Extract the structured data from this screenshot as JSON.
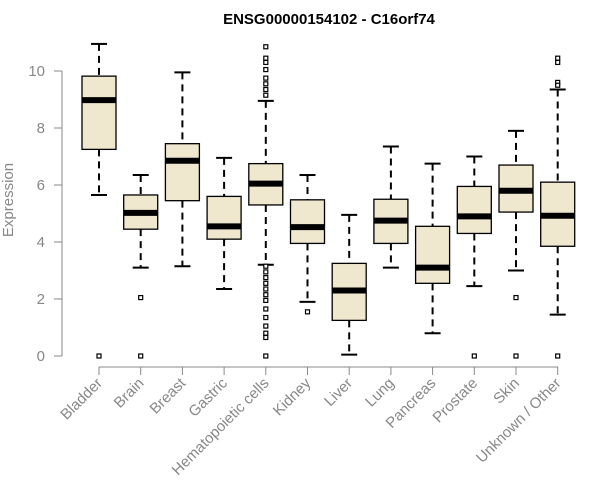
{
  "chart_data": {
    "type": "boxplot",
    "title": "ENSG00000154102 - C16orf74",
    "xlabel": "",
    "ylabel": "Expression",
    "ylim": [
      0,
      11
    ],
    "yticks": [
      0,
      2,
      4,
      6,
      8,
      10
    ],
    "grid": false,
    "box_fill": "#efe8cf",
    "categories": [
      "Bladder",
      "Brain",
      "Breast",
      "Gastric",
      "Hematopoietic cells",
      "Kidney",
      "Liver",
      "Lung",
      "Pancreas",
      "Prostate",
      "Skin",
      "Unknown / Other"
    ],
    "boxes": [
      {
        "whisker_low": 5.65,
        "q1": 7.25,
        "median": 8.98,
        "q3": 9.82,
        "whisker_high": 10.95,
        "outliers": [
          0
        ]
      },
      {
        "whisker_low": 3.1,
        "q1": 4.45,
        "median": 5.02,
        "q3": 5.65,
        "whisker_high": 6.35,
        "outliers": [
          2.05,
          0
        ]
      },
      {
        "whisker_low": 3.15,
        "q1": 5.45,
        "median": 6.85,
        "q3": 7.45,
        "whisker_high": 9.95,
        "outliers": []
      },
      {
        "whisker_low": 2.35,
        "q1": 4.1,
        "median": 4.55,
        "q3": 5.6,
        "whisker_high": 6.95,
        "outliers": []
      },
      {
        "whisker_low": 3.2,
        "q1": 5.3,
        "median": 6.05,
        "q3": 6.75,
        "whisker_high": 8.95,
        "outliers": [
          10.85,
          10.45,
          10.3,
          10.05,
          9.75,
          9.55,
          9.35,
          9.15,
          3.15,
          2.95,
          2.75,
          2.55,
          2.35,
          2.15,
          1.95,
          1.65,
          1.35,
          1.05,
          0.8,
          0.65,
          0
        ]
      },
      {
        "whisker_low": 1.9,
        "q1": 3.95,
        "median": 4.52,
        "q3": 5.48,
        "whisker_high": 6.35,
        "outliers": [
          1.55
        ]
      },
      {
        "whisker_low": 0.05,
        "q1": 1.25,
        "median": 2.3,
        "q3": 3.25,
        "whisker_high": 4.95,
        "outliers": []
      },
      {
        "whisker_low": 3.1,
        "q1": 3.95,
        "median": 4.75,
        "q3": 5.5,
        "whisker_high": 7.35,
        "outliers": []
      },
      {
        "whisker_low": 0.8,
        "q1": 2.55,
        "median": 3.1,
        "q3": 4.55,
        "whisker_high": 6.75,
        "outliers": []
      },
      {
        "whisker_low": 2.45,
        "q1": 4.3,
        "median": 4.9,
        "q3": 5.95,
        "whisker_high": 7.0,
        "outliers": [
          0
        ]
      },
      {
        "whisker_low": 3.0,
        "q1": 5.05,
        "median": 5.8,
        "q3": 6.7,
        "whisker_high": 7.9,
        "outliers": [
          2.05,
          0
        ]
      },
      {
        "whisker_low": 1.45,
        "q1": 3.85,
        "median": 4.92,
        "q3": 6.1,
        "whisker_high": 9.35,
        "outliers": [
          10.45,
          10.3,
          9.6,
          9.5,
          0
        ]
      }
    ]
  }
}
